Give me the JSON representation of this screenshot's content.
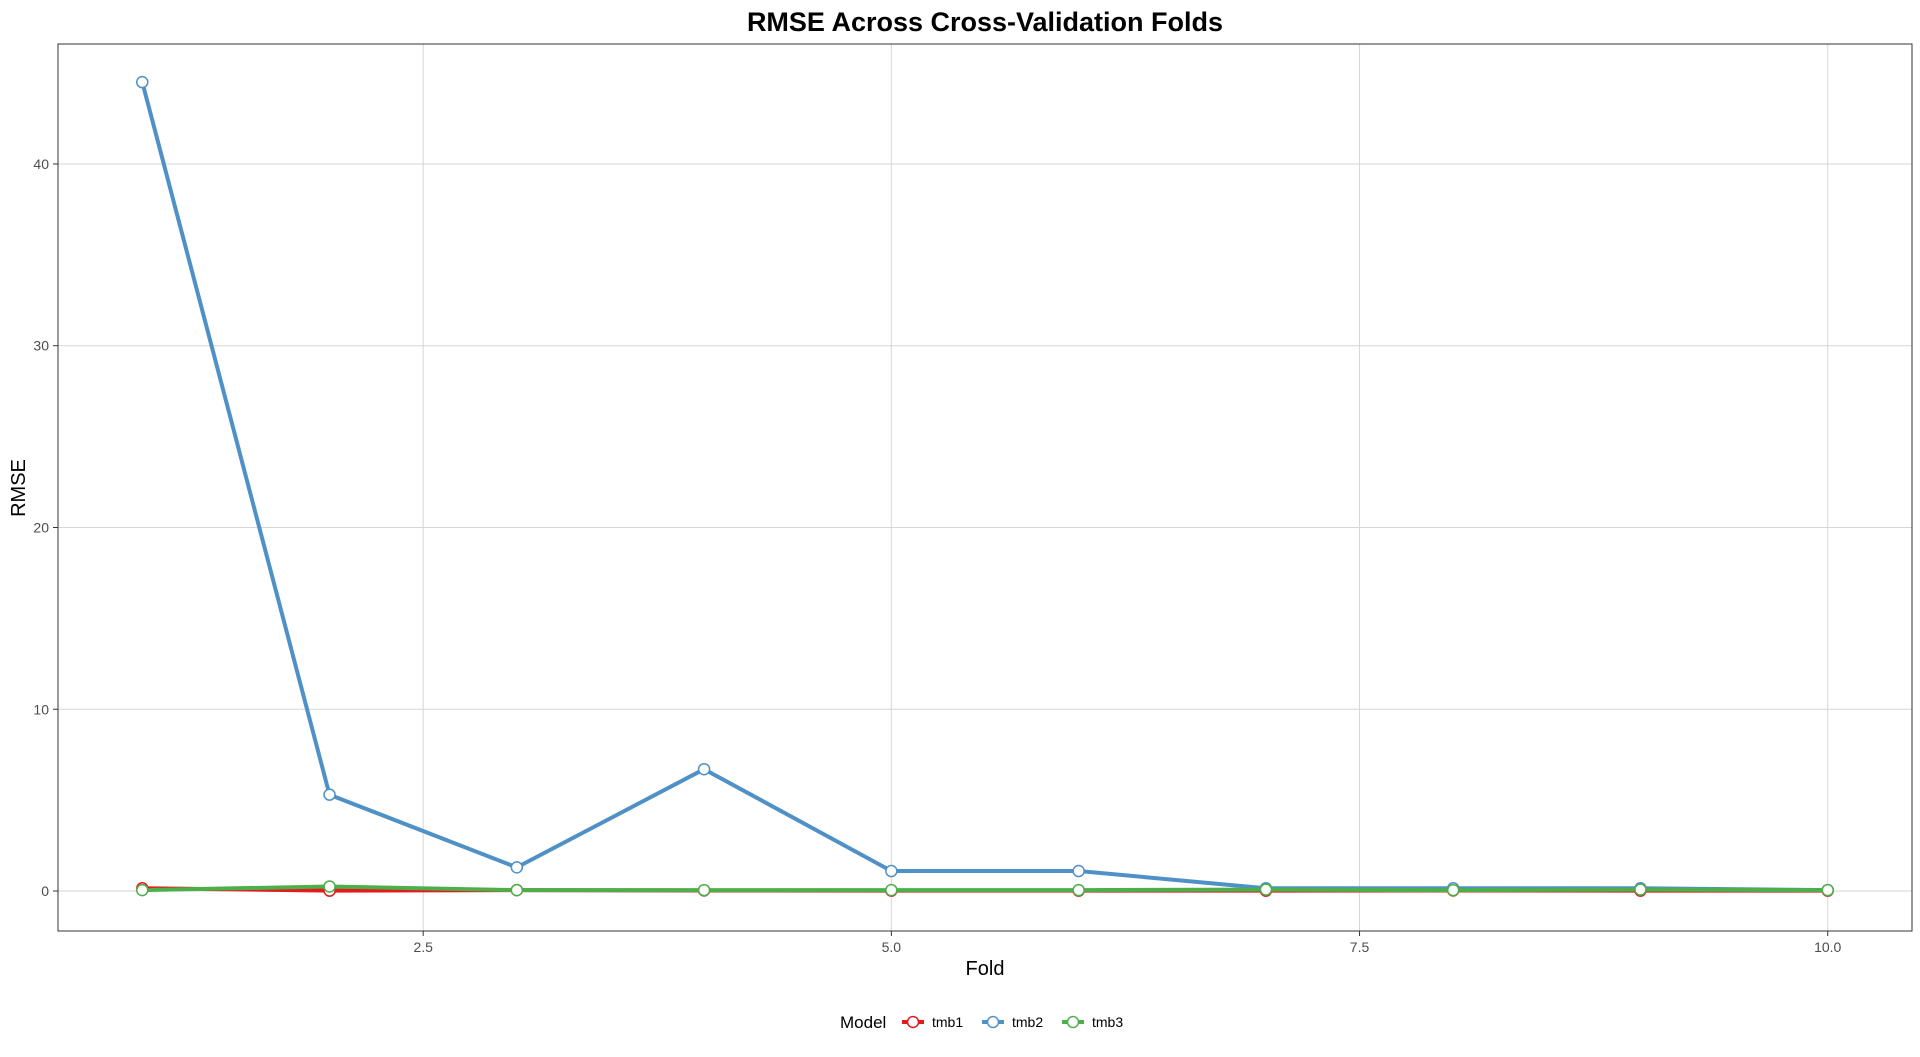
{
  "chart_data": {
    "type": "line",
    "title": "RMSE Across Cross-Validation Folds",
    "xlabel": "Fold",
    "ylabel": "RMSE",
    "xlim": [
      0.55,
      10.45
    ],
    "ylim": [
      -2.2,
      46.6
    ],
    "x_ticks": [
      2.5,
      5.0,
      7.5,
      10.0
    ],
    "x_tick_labels": [
      "2.5",
      "5.0",
      "7.5",
      "10.0"
    ],
    "y_ticks": [
      0,
      10,
      20,
      30,
      40
    ],
    "y_tick_labels": [
      "0",
      "10",
      "20",
      "30",
      "40"
    ],
    "grid": true,
    "legend": {
      "title": "Model",
      "position": "bottom"
    },
    "x": [
      1,
      2,
      3,
      4,
      5,
      6,
      7,
      8,
      9,
      10
    ],
    "series": [
      {
        "name": "tmb1",
        "color": "#e41a1c",
        "values": [
          0.15,
          0.02,
          0.05,
          0.03,
          0.02,
          0.02,
          0.02,
          0.03,
          0.02,
          0.02
        ]
      },
      {
        "name": "tmb2",
        "color": "#4f91c6",
        "values": [
          44.5,
          5.3,
          1.3,
          6.7,
          1.1,
          1.1,
          0.15,
          0.15,
          0.15,
          0.05
        ]
      },
      {
        "name": "tmb3",
        "color": "#4daf4a",
        "values": [
          0.05,
          0.25,
          0.05,
          0.05,
          0.05,
          0.05,
          0.08,
          0.05,
          0.08,
          0.05
        ]
      }
    ]
  }
}
